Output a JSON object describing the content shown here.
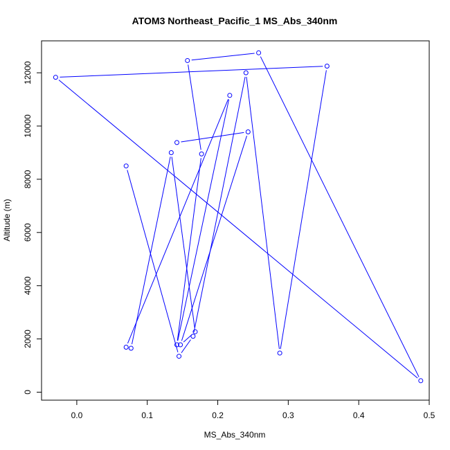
{
  "chart_data": {
    "type": "line",
    "title": "ATOM3 Northeast_Pacific_1 MS_Abs_340nm",
    "xlabel": "MS_Abs_340nm",
    "ylabel": "Altitude (m)",
    "xlim": [
      -0.05,
      0.5
    ],
    "ylim": [
      -300,
      13200
    ],
    "xticks": [
      0.0,
      0.1,
      0.2,
      0.3,
      0.4,
      0.5
    ],
    "xtick_labels": [
      "0.0",
      "0.1",
      "0.2",
      "0.3",
      "0.4",
      "0.5"
    ],
    "yticks": [
      0,
      2000,
      4000,
      6000,
      8000,
      10000,
      12000
    ],
    "ytick_labels": [
      "0",
      "2000",
      "4000",
      "6000",
      "8000",
      "10000",
      "12000"
    ],
    "grid": false,
    "line_color": "#0000ff",
    "series": [
      {
        "x": [
          0.07,
          0.145,
          0.165,
          0.24,
          0.288,
          0.355,
          -0.03,
          0.488,
          0.258,
          0.157,
          0.177,
          0.142,
          0.217,
          0.07,
          0.077,
          0.134,
          0.168,
          0.147,
          0.243,
          0.142
        ],
        "y": [
          8500,
          1350,
          2100,
          12000,
          1470,
          12250,
          11830,
          430,
          12750,
          12460,
          8950,
          1780,
          11150,
          1690,
          1650,
          9000,
          2270,
          1780,
          9780,
          9380
        ]
      }
    ]
  }
}
